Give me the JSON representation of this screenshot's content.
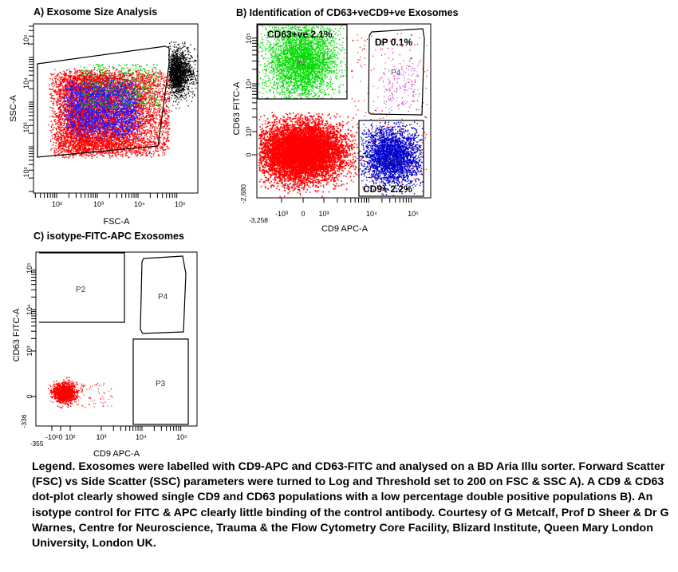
{
  "panels": [
    {
      "title": "A) Exosome  Size Analysis",
      "chart_data": {
        "type": "scatter",
        "title": "A) Exosome  Size Analysis",
        "xlabel": "FSC-A",
        "ylabel": "SSC-A",
        "xscale": "log",
        "yscale": "log",
        "x_ticks": [
          "10²",
          "10³",
          "10⁴",
          "10⁵"
        ],
        "y_ticks": [
          "10²",
          "10³",
          "10⁴",
          "10⁵"
        ],
        "gates": [
          {
            "name": "P1"
          }
        ],
        "populations": [
          {
            "color": "#ff0000",
            "center": [
              1000,
              3000
            ]
          },
          {
            "color": "#1a1aff",
            "center": [
              1000,
              3000
            ]
          },
          {
            "color": "#00cc00",
            "center": [
              2000,
              8000
            ]
          },
          {
            "color": "#000000",
            "center": [
              130000,
              25000
            ]
          }
        ]
      }
    },
    {
      "title": "B) Identification of CD63+veCD9+ve Exosomes",
      "chart_data": {
        "type": "scatter",
        "title": "B) Identification of CD63+veCD9+ve Exosomes",
        "xlabel": "CD9 APC-A",
        "ylabel": "CD63 FITC-A",
        "xscale": "biexponential",
        "yscale": "biexponential",
        "x_ticks": [
          "-10³",
          "0",
          "10³",
          "10⁴",
          "10⁵"
        ],
        "y_ticks": [
          "0",
          "10³",
          "10⁴",
          "10⁵"
        ],
        "x_min_label": "-3,258",
        "y_min_label": "-2,680",
        "gates": [
          {
            "name": "P2",
            "label": "CD63+ve 2.1%",
            "percent": 2.1
          },
          {
            "name": "P4",
            "label": "DP 0.1%",
            "percent": 0.1
          },
          {
            "name": "P3",
            "label": "CD9+ 2.2%",
            "percent": 2.2
          }
        ],
        "populations": [
          {
            "color": "#ff0000",
            "gate": "none"
          },
          {
            "color": "#00dd00",
            "gate": "P2"
          },
          {
            "color": "#0000cc",
            "gate": "P3"
          },
          {
            "color": "#cc66ee",
            "gate": "P4"
          }
        ]
      }
    },
    {
      "title": "C) isotype-FITC-APC Exosomes",
      "chart_data": {
        "type": "scatter",
        "title": "C) isotype-FITC-APC Exosomes",
        "xlabel": "CD9 APC-A",
        "ylabel": "CD63 FITC-A",
        "xscale": "biexponential",
        "yscale": "biexponential",
        "x_ticks": [
          "-10²",
          "0",
          "10²",
          "10³",
          "10⁴",
          "10⁵"
        ],
        "y_ticks": [
          "0",
          "10³",
          "10⁴",
          "10⁵"
        ],
        "x_min_label": "-355",
        "y_min_label": "-336",
        "gates": [
          {
            "name": "P2"
          },
          {
            "name": "P4"
          },
          {
            "name": "P3"
          }
        ],
        "populations": [
          {
            "color": "#ff0000",
            "gate": "none"
          }
        ]
      }
    }
  ],
  "legend": "Legend. Exosomes were labelled with CD9-APC and CD63-FITC and analysed on a BD Aria Illu sorter. Forward Scatter (FSC) vs Side Scatter (SSC) parameters were turned to Log and Threshold set to 200 on FSC & SSC A). A CD9 & CD63 dot-plot clearly showed single CD9 and CD63 populations with a low percentage double positive populations B). An isotype control for FITC & APC clearly little binding of the control antibody. Courtesy of G Metcalf, Prof D Sheer & Dr G Warnes, Centre for Neuroscience, Trauma & the Flow Cytometry Core Facility, Blizard Institute, Queen Mary London University, London UK."
}
